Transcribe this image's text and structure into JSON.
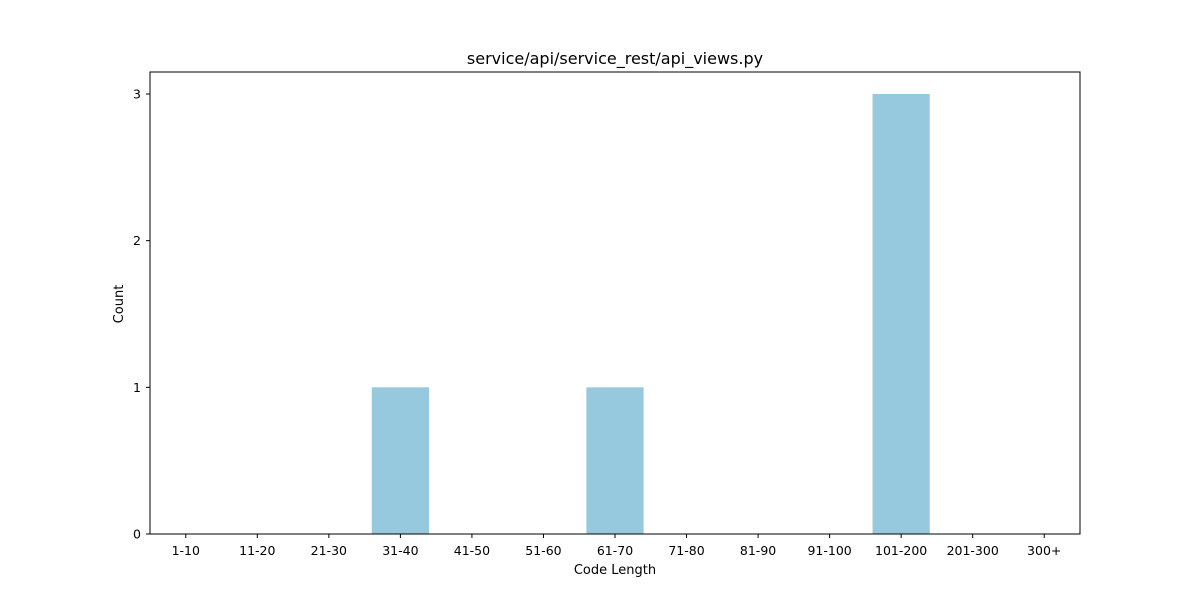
{
  "chart_data": {
    "type": "bar",
    "title": "service/api/service_rest/api_views.py",
    "xlabel": "Code Length",
    "ylabel": "Count",
    "categories": [
      "1-10",
      "11-20",
      "21-30",
      "31-40",
      "41-50",
      "51-60",
      "61-70",
      "71-80",
      "81-90",
      "91-100",
      "101-200",
      "201-300",
      "300+"
    ],
    "values": [
      0,
      0,
      0,
      1,
      0,
      0,
      1,
      0,
      0,
      0,
      3,
      0,
      0
    ],
    "yticks": [
      "0",
      "1",
      "2",
      "3"
    ],
    "ylim": [
      0,
      3.15
    ],
    "grid": false,
    "legend": "none",
    "bar_color": "#96c9dd"
  }
}
